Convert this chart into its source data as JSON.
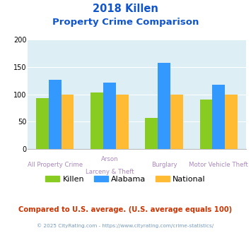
{
  "title_line1": "2018 Killen",
  "title_line2": "Property Crime Comparison",
  "group_labels_top": [
    "All Property Crime",
    "Arson",
    "Burglary",
    "Motor Vehicle Theft"
  ],
  "group_labels_bot": [
    "",
    "Larceny & Theft",
    "",
    ""
  ],
  "killen": [
    93,
    104,
    57,
    91
  ],
  "alabama": [
    127,
    122,
    157,
    117
  ],
  "national": [
    100,
    100,
    100,
    100
  ],
  "killen_color": "#88cc22",
  "alabama_color": "#3399ff",
  "national_color": "#ffbb33",
  "bg_color": "#ddeef5",
  "ylim": [
    0,
    200
  ],
  "yticks": [
    0,
    50,
    100,
    150,
    200
  ],
  "title_color": "#1155cc",
  "label_color": "#aa88bb",
  "footer_text": "Compared to U.S. average. (U.S. average equals 100)",
  "footer_color": "#cc3300",
  "copyright_text": "© 2025 CityRating.com - https://www.cityrating.com/crime-statistics/",
  "copyright_color": "#7799bb",
  "legend_labels": [
    "Killen",
    "Alabama",
    "National"
  ]
}
